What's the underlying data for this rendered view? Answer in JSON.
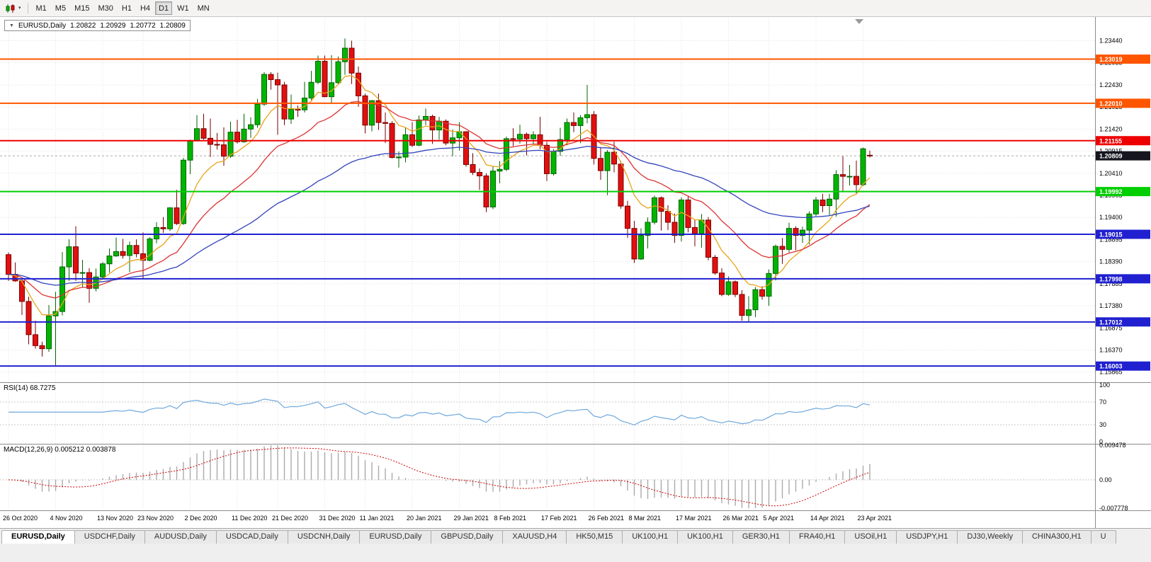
{
  "toolbar": {
    "menu_caret": "▾",
    "timeframes": [
      "M1",
      "M5",
      "M15",
      "M30",
      "H1",
      "H4",
      "D1",
      "W1",
      "MN"
    ],
    "active_timeframe": "D1"
  },
  "main_chart": {
    "header": {
      "collapse_arrow": "▼",
      "symbol": "EURUSD,Daily",
      "open": "1.20822",
      "high": "1.20929",
      "low": "1.20772",
      "close": "1.20809"
    },
    "price_range": {
      "top": 1.2395,
      "bottom": 1.1565
    },
    "price_axis_ticks": [
      "1.23440",
      "1.22935",
      "1.22430",
      "1.21925",
      "1.21420",
      "1.20915",
      "1.20410",
      "1.19905",
      "1.19400",
      "1.18895",
      "1.18390",
      "1.17885",
      "1.17380",
      "1.16875",
      "1.16370",
      "1.15865"
    ],
    "current_price_badge": {
      "label": "1.20809",
      "color": "#15151f"
    },
    "hlines": [
      {
        "price": 1.23019,
        "label": "1.23019",
        "color": "#ff5500",
        "width": 2
      },
      {
        "price": 1.2201,
        "label": "1.22010",
        "color": "#ff5500",
        "width": 2
      },
      {
        "price": 1.21155,
        "label": "1.21155",
        "color": "#ee0000",
        "width": 2
      },
      {
        "price": 1.19992,
        "label": "1.19992",
        "color": "#00ce00",
        "width": 2
      },
      {
        "price": 1.19015,
        "label": "1.19015",
        "color": "#2020d0",
        "width": 2
      },
      {
        "price": 1.17998,
        "label": "1.17998",
        "color": "#2020d0",
        "width": 2
      },
      {
        "price": 1.17012,
        "label": "1.17012",
        "color": "#2020d0",
        "width": 2
      },
      {
        "price": 1.16003,
        "label": "1.16003",
        "color": "#2020d0",
        "width": 2
      }
    ]
  },
  "chart_data": {
    "type": "candlestick",
    "symbol": "EURUSD",
    "timeframe": "Daily",
    "up_color": "#00b400",
    "up_border": "#006400",
    "down_color": "#e01010",
    "down_border": "#7a0000",
    "x_labels": [
      {
        "label": "26 Oct 2020",
        "index": 0
      },
      {
        "label": "4 Nov 2020",
        "index": 7
      },
      {
        "label": "13 Nov 2020",
        "index": 14
      },
      {
        "label": "23 Nov 2020",
        "index": 20
      },
      {
        "label": "2 Dec 2020",
        "index": 27
      },
      {
        "label": "11 Dec 2020",
        "index": 34
      },
      {
        "label": "21 Dec 2020",
        "index": 40
      },
      {
        "label": "31 Dec 2020",
        "index": 47
      },
      {
        "label": "11 Jan 2021",
        "index": 53
      },
      {
        "label": "20 Jan 2021",
        "index": 60
      },
      {
        "label": "29 Jan 2021",
        "index": 67
      },
      {
        "label": "8 Feb 2021",
        "index": 73
      },
      {
        "label": "17 Feb 2021",
        "index": 80
      },
      {
        "label": "26 Feb 2021",
        "index": 87
      },
      {
        "label": "8 Mar 2021",
        "index": 93
      },
      {
        "label": "17 Mar 2021",
        "index": 100
      },
      {
        "label": "26 Mar 2021",
        "index": 107
      },
      {
        "label": "5 Apr 2021",
        "index": 113
      },
      {
        "label": "14 Apr 2021",
        "index": 120
      },
      {
        "label": "23 Apr 2021",
        "index": 127
      }
    ],
    "moving_averages": [
      {
        "name": "fast",
        "period": 8,
        "method": "ema",
        "color": "#e8a41c"
      },
      {
        "name": "medium",
        "period": 20,
        "method": "ema",
        "color": "#dd3333"
      },
      {
        "name": "slow",
        "period": 52,
        "method": "ema",
        "color": "#3344bb"
      }
    ],
    "ohlc": [
      [
        1.1855,
        1.186,
        1.1795,
        1.181
      ],
      [
        1.181,
        1.1837,
        1.1793,
        1.1795
      ],
      [
        1.1795,
        1.18,
        1.1717,
        1.1748
      ],
      [
        1.1748,
        1.1759,
        1.165,
        1.1672
      ],
      [
        1.1672,
        1.1704,
        1.164,
        1.1647
      ],
      [
        1.1647,
        1.1656,
        1.1622,
        1.164
      ],
      [
        1.164,
        1.174,
        1.1633,
        1.1715
      ],
      [
        1.1715,
        1.177,
        1.1602,
        1.1725
      ],
      [
        1.1725,
        1.1861,
        1.1716,
        1.1827
      ],
      [
        1.1827,
        1.189,
        1.1795,
        1.1873
      ],
      [
        1.1873,
        1.192,
        1.1795,
        1.1813
      ],
      [
        1.1813,
        1.1843,
        1.178,
        1.1814
      ],
      [
        1.1814,
        1.1824,
        1.1745,
        1.1778
      ],
      [
        1.1778,
        1.1823,
        1.1771,
        1.1804
      ],
      [
        1.1804,
        1.1838,
        1.1799,
        1.1834
      ],
      [
        1.1834,
        1.1869,
        1.1814,
        1.1852
      ],
      [
        1.1852,
        1.1894,
        1.185,
        1.1862
      ],
      [
        1.1862,
        1.1891,
        1.1846,
        1.1853
      ],
      [
        1.1853,
        1.1885,
        1.1815,
        1.1876
      ],
      [
        1.1876,
        1.189,
        1.1849,
        1.1857
      ],
      [
        1.1857,
        1.1906,
        1.18,
        1.1842
      ],
      [
        1.1842,
        1.1895,
        1.184,
        1.1891
      ],
      [
        1.1891,
        1.1929,
        1.1881,
        1.1917
      ],
      [
        1.1917,
        1.1941,
        1.1905,
        1.1914
      ],
      [
        1.1914,
        1.1963,
        1.1909,
        1.1962
      ],
      [
        1.1962,
        1.2003,
        1.1923,
        1.1926
      ],
      [
        1.1926,
        1.2076,
        1.1923,
        1.2071
      ],
      [
        1.2071,
        1.2118,
        1.2039,
        1.2115
      ],
      [
        1.2115,
        1.2174,
        1.2114,
        1.2143
      ],
      [
        1.2143,
        1.2177,
        1.2118,
        1.2121
      ],
      [
        1.2121,
        1.2166,
        1.2078,
        1.2107
      ],
      [
        1.2107,
        1.2133,
        1.2095,
        1.2106
      ],
      [
        1.2106,
        1.2146,
        1.2058,
        1.208
      ],
      [
        1.208,
        1.2159,
        1.2076,
        1.2135
      ],
      [
        1.2135,
        1.2163,
        1.2109,
        1.2113
      ],
      [
        1.2113,
        1.2177,
        1.2111,
        1.2142
      ],
      [
        1.2142,
        1.2169,
        1.2122,
        1.2152
      ],
      [
        1.2152,
        1.2211,
        1.2145,
        1.2199
      ],
      [
        1.2199,
        1.2272,
        1.2195,
        1.2267
      ],
      [
        1.2267,
        1.2272,
        1.2232,
        1.2255
      ],
      [
        1.2255,
        1.2271,
        1.2129,
        1.2243
      ],
      [
        1.2243,
        1.225,
        1.2151,
        1.2165
      ],
      [
        1.2165,
        1.2221,
        1.2154,
        1.2187
      ],
      [
        1.2187,
        1.2196,
        1.217,
        1.2186
      ],
      [
        1.2186,
        1.225,
        1.218,
        1.2213
      ],
      [
        1.2213,
        1.2275,
        1.2208,
        1.2249
      ],
      [
        1.2249,
        1.231,
        1.2245,
        1.2297
      ],
      [
        1.2297,
        1.231,
        1.2215,
        1.2216
      ],
      [
        1.2216,
        1.2311,
        1.22,
        1.2248
      ],
      [
        1.2248,
        1.2308,
        1.2244,
        1.2296
      ],
      [
        1.2296,
        1.2349,
        1.2266,
        1.2327
      ],
      [
        1.2327,
        1.2344,
        1.2245,
        1.227
      ],
      [
        1.227,
        1.2285,
        1.2193,
        1.2218
      ],
      [
        1.2218,
        1.2223,
        1.2132,
        1.2151
      ],
      [
        1.2151,
        1.2208,
        1.2137,
        1.2207
      ],
      [
        1.2207,
        1.2223,
        1.214,
        1.2157
      ],
      [
        1.2157,
        1.218,
        1.211,
        1.2155
      ],
      [
        1.2155,
        1.216,
        1.2075,
        1.2077
      ],
      [
        1.2077,
        1.2091,
        1.2054,
        1.2078
      ],
      [
        1.2078,
        1.2145,
        1.2066,
        1.2129
      ],
      [
        1.2129,
        1.2158,
        1.2101,
        1.2105
      ],
      [
        1.2105,
        1.2173,
        1.2103,
        1.2163
      ],
      [
        1.2163,
        1.2189,
        1.2151,
        1.2171
      ],
      [
        1.2171,
        1.2175,
        1.2108,
        1.214
      ],
      [
        1.214,
        1.217,
        1.2118,
        1.216
      ],
      [
        1.216,
        1.2164,
        1.2105,
        1.211
      ],
      [
        1.211,
        1.2141,
        1.208,
        1.2122
      ],
      [
        1.2122,
        1.2158,
        1.2093,
        1.2136
      ],
      [
        1.2136,
        1.2137,
        1.2056,
        1.2061
      ],
      [
        1.2061,
        1.2087,
        1.2037,
        1.2043
      ],
      [
        1.2043,
        1.2052,
        1.2003,
        1.2035
      ],
      [
        1.2035,
        1.2041,
        1.1952,
        1.1964
      ],
      [
        1.1964,
        1.2056,
        1.1959,
        1.2046
      ],
      [
        1.2046,
        1.2069,
        1.2018,
        1.205
      ],
      [
        1.205,
        1.2125,
        1.2046,
        1.212
      ],
      [
        1.212,
        1.2144,
        1.2103,
        1.2119
      ],
      [
        1.2119,
        1.2152,
        1.2109,
        1.213
      ],
      [
        1.213,
        1.2134,
        1.2082,
        1.212
      ],
      [
        1.212,
        1.2137,
        1.2107,
        1.2129
      ],
      [
        1.2129,
        1.217,
        1.2096,
        1.2105
      ],
      [
        1.2105,
        1.2113,
        1.2023,
        1.204
      ],
      [
        1.204,
        1.2096,
        1.2036,
        1.2091
      ],
      [
        1.2091,
        1.2145,
        1.2081,
        1.2118
      ],
      [
        1.2118,
        1.2166,
        1.2105,
        1.2157
      ],
      [
        1.2157,
        1.218,
        1.2135,
        1.215
      ],
      [
        1.215,
        1.2174,
        1.211,
        1.2168
      ],
      [
        1.2168,
        1.2243,
        1.2155,
        1.2175
      ],
      [
        1.2175,
        1.2183,
        1.2061,
        1.2075
      ],
      [
        1.2075,
        1.2101,
        1.2026,
        1.2047
      ],
      [
        1.2047,
        1.2094,
        1.1991,
        1.2089
      ],
      [
        1.2089,
        1.2113,
        1.2043,
        1.2062
      ],
      [
        1.2062,
        1.2069,
        1.196,
        1.1966
      ],
      [
        1.1966,
        1.1978,
        1.1893,
        1.1915
      ],
      [
        1.1915,
        1.1932,
        1.1836,
        1.1845
      ],
      [
        1.1845,
        1.1915,
        1.1843,
        1.1899
      ],
      [
        1.1899,
        1.194,
        1.1869,
        1.1929
      ],
      [
        1.1929,
        1.199,
        1.1924,
        1.1985
      ],
      [
        1.1985,
        1.1988,
        1.191,
        1.1954
      ],
      [
        1.1954,
        1.1968,
        1.1911,
        1.1929
      ],
      [
        1.1929,
        1.1949,
        1.1882,
        1.1899
      ],
      [
        1.1899,
        1.1986,
        1.1885,
        1.198
      ],
      [
        1.198,
        1.1988,
        1.1906,
        1.1917
      ],
      [
        1.1917,
        1.1935,
        1.1874,
        1.1903
      ],
      [
        1.1903,
        1.1948,
        1.1871,
        1.1934
      ],
      [
        1.1934,
        1.1941,
        1.1842,
        1.1849
      ],
      [
        1.1849,
        1.1854,
        1.1809,
        1.1813
      ],
      [
        1.1813,
        1.1824,
        1.176,
        1.1764
      ],
      [
        1.1764,
        1.1805,
        1.1761,
        1.1793
      ],
      [
        1.1793,
        1.1796,
        1.1758,
        1.1764
      ],
      [
        1.1764,
        1.1774,
        1.1704,
        1.1716
      ],
      [
        1.1716,
        1.176,
        1.17,
        1.1729
      ],
      [
        1.1729,
        1.1781,
        1.1712,
        1.1775
      ],
      [
        1.1775,
        1.1783,
        1.1752,
        1.176
      ],
      [
        1.176,
        1.1821,
        1.1738,
        1.1812
      ],
      [
        1.1812,
        1.1878,
        1.1796,
        1.1874
      ],
      [
        1.1874,
        1.1893,
        1.1834,
        1.1867
      ],
      [
        1.1867,
        1.1928,
        1.186,
        1.1915
      ],
      [
        1.1915,
        1.192,
        1.1865,
        1.1899
      ],
      [
        1.1899,
        1.1919,
        1.1882,
        1.1911
      ],
      [
        1.1911,
        1.1954,
        1.1878,
        1.1948
      ],
      [
        1.1948,
        1.1987,
        1.1943,
        1.198
      ],
      [
        1.198,
        1.1994,
        1.1952,
        1.1967
      ],
      [
        1.1967,
        1.1994,
        1.1945,
        1.1982
      ],
      [
        1.1982,
        1.2048,
        1.1942,
        1.2038
      ],
      [
        1.2038,
        1.208,
        1.1998,
        1.2034
      ],
      [
        1.2034,
        1.206,
        1.2013,
        1.2034
      ],
      [
        1.2034,
        1.207,
        1.1993,
        1.2015
      ],
      [
        1.2015,
        1.21,
        1.2012,
        1.2097
      ],
      [
        1.20822,
        1.20929,
        1.20772,
        1.20809
      ]
    ]
  },
  "rsi_panel": {
    "label": "RSI(14) 68.7275",
    "period": 14,
    "current": 68.7275,
    "levels": [
      70,
      30
    ],
    "axis_ticks": [
      "100",
      "70",
      "30",
      "0"
    ],
    "color": "#6fa8dc"
  },
  "macd_panel": {
    "label": "MACD(12,26,9) 0.005212 0.003878",
    "params": "12,26,9",
    "macd_value": 0.005212,
    "signal_value": 0.003878,
    "range": {
      "top": 0.009478,
      "bottom": -0.007778
    },
    "axis_ticks": [
      "0.009478",
      "0.00",
      "-0.007778"
    ],
    "histogram_color": "#aaaaaa",
    "signal_color": "#cc0000"
  },
  "bottom_tabs": {
    "active_index": 0,
    "tabs": [
      "EURUSD,Daily",
      "USDCHF,Daily",
      "AUDUSD,Daily",
      "USDCAD,Daily",
      "USDCNH,Daily",
      "EURUSD,Daily",
      "GBPUSD,Daily",
      "XAUUSD,H4",
      "HK50,M15",
      "UK100,H1",
      "UK100,H1",
      "GER30,H1",
      "FRA40,H1",
      "USOil,H1",
      "USDJPY,H1",
      "DJ30,Weekly",
      "CHINA300,H1",
      "U"
    ]
  }
}
